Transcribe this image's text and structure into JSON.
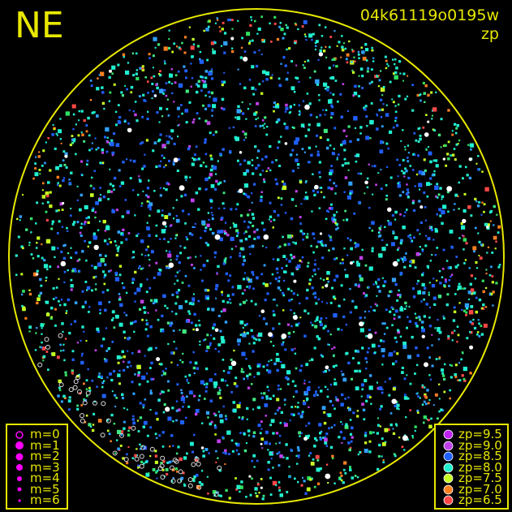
{
  "corner_label": "NE",
  "title": "04k61119o0195w",
  "subtitle": "zp",
  "colors": {
    "frame": "#e8e800",
    "zp_9_5": "#c020f0",
    "zp_9_0": "#c040e8",
    "zp_8_5": "#2060ff",
    "zp_8_0": "#20f0d0",
    "zp_7_5": "#c8ff20",
    "zp_7_0": "#ff8020",
    "zp_6_5": "#ff4848",
    "saturated": "#ffffff",
    "legend_marker": "#ff00ff"
  },
  "magnitude_legend": [
    {
      "label": "m=0",
      "marker": "open-circle"
    },
    {
      "label": "m=1",
      "marker": "filled-circle"
    },
    {
      "label": "m=2",
      "marker": "filled-circle"
    },
    {
      "label": "m=3",
      "marker": "filled-circle"
    },
    {
      "label": "m=4",
      "marker": "filled-circle"
    },
    {
      "label": "m=5",
      "marker": "filled-circle"
    },
    {
      "label": "m=6",
      "marker": "filled-circle"
    }
  ],
  "zp_legend": [
    {
      "label": "zp=9.5",
      "color": "#c020f0"
    },
    {
      "label": "zp=9.0",
      "color": "#c040e8"
    },
    {
      "label": "zp=8.5",
      "color": "#2060ff"
    },
    {
      "label": "zp=8.0",
      "color": "#20f0d0"
    },
    {
      "label": "zp=7.5",
      "color": "#c8ff20"
    },
    {
      "label": "zp=7.0",
      "color": "#ff8020"
    },
    {
      "label": "zp=6.5",
      "color": "#ff4848"
    }
  ]
}
